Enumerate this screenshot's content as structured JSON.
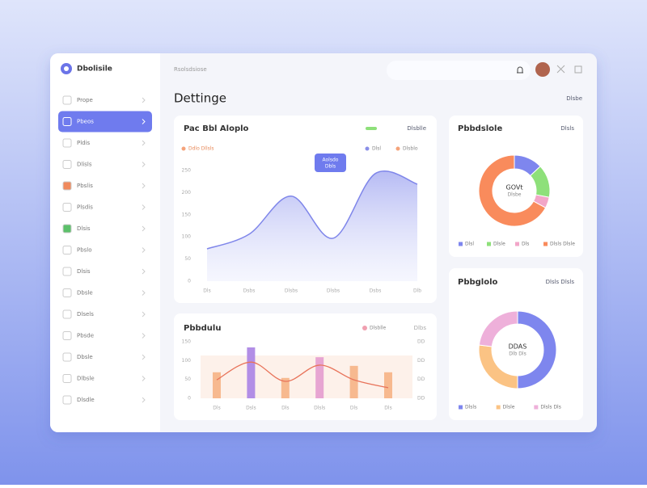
{
  "app": {
    "brand": "Dbolisile",
    "breadcrumb": "Rsolsdsiose",
    "title": "Dettinge",
    "title_action": "Dlsbe"
  },
  "sidebar": {
    "items": [
      "Prope",
      "Pbeos",
      "Pldis",
      "Dlisls",
      "Pbslis",
      "Plsdis",
      "Dlsis",
      "Pbslo",
      "Dlsis",
      "Dbsle",
      "Dlsels",
      "Pbsde",
      "Dbsle",
      "Dlbsle",
      "Dlsdle"
    ],
    "active": 1
  },
  "area_chart": {
    "title": "Pac Bbl Aloplo",
    "header_action": "Dlsblle",
    "legend": [
      {
        "name": "Ddlo Dllsls",
        "color": "#f5a37a"
      },
      {
        "name": "Dlsl",
        "color": "#8a8fe8"
      },
      {
        "name": "Dlsblo",
        "color": "#f5a37a"
      }
    ],
    "categories": [
      "Dls",
      "Dsbs",
      "Dlsbs",
      "Dlsbs",
      "Dsbs",
      "Dlb"
    ],
    "values": [
      73,
      106,
      192,
      97,
      243,
      219
    ],
    "color": "#7f86ea",
    "ylim": [
      0,
      260
    ],
    "yticks": [
      0,
      50,
      100,
      150,
      200,
      250
    ],
    "tooltip": [
      "Aolsdo",
      "Dbls"
    ]
  },
  "combo_chart": {
    "title": "Pbbdulu",
    "header_action": "Dlbs",
    "legend": [
      {
        "name": "Dlsblle",
        "color": "#f0a0b0"
      }
    ],
    "categories": [
      "Dls",
      "Dsls",
      "Dls",
      "Dlsls",
      "Dls",
      "Dls"
    ],
    "bars": {
      "values": [
        69,
        135,
        54,
        109,
        86,
        69
      ],
      "colors": [
        "#f7b98f",
        "#b28ee6",
        "#f7b98f",
        "#e7a5d2",
        "#f7b98f",
        "#f7b98f"
      ]
    },
    "line": {
      "values": [
        49,
        96,
        45,
        88,
        49,
        28
      ],
      "color": "#e8735a"
    },
    "ylim": [
      0,
      160
    ],
    "yticks": [
      0,
      50,
      100,
      150
    ],
    "right_labels": [
      "DD",
      "DD",
      "DD",
      "DD"
    ]
  },
  "donut_1": {
    "title": "Pbbdslole",
    "subtitle": "Dlsls",
    "center": [
      "GOVt",
      "Dlsbe"
    ],
    "segments": [
      {
        "name": "Dlsl",
        "color": "#7e86ee",
        "value": 13
      },
      {
        "name": "Dlsle",
        "color": "#8ee07a",
        "value": 15
      },
      {
        "name": "Dls",
        "color": "#f2a6c8",
        "value": 5
      },
      {
        "name": "Dlsls Dlsle",
        "color": "#f98b5c",
        "value": 67
      }
    ]
  },
  "donut_2": {
    "title": "Pbbglolo",
    "subtitle": "Dlsls Dlsls",
    "center": [
      "DDAS",
      "Dlb Dls"
    ],
    "segments": [
      {
        "name": "Dlsls",
        "color": "#7e86ee",
        "value": 50
      },
      {
        "name": "Dlsle",
        "color": "#fbc384",
        "value": 27
      },
      {
        "name": "Dlsls Dls",
        "color": "#eeb0da",
        "value": 23
      }
    ]
  }
}
